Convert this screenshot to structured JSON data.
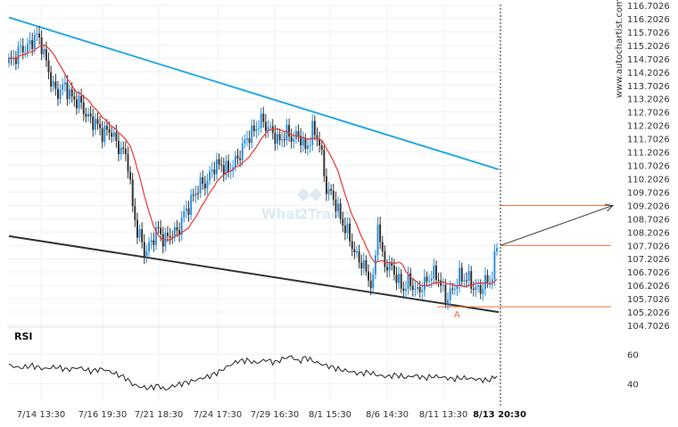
{
  "site_label": "www.autochartist.com",
  "watermark": {
    "text_left": "What",
    "text_mid": "2",
    "text_right": "Trade"
  },
  "colors": {
    "up": "#2f8fd8",
    "down": "#333333",
    "ma": "#e53935",
    "resistance": "#27a9e1",
    "support": "#333333",
    "level": "#f07030",
    "arrow": "#333333",
    "rsi": "#222222"
  },
  "chart_data": [
    {
      "type": "candlestick",
      "title": "",
      "xlabel": "",
      "ylabel": "",
      "x_ticks": [
        "7/14 13:30",
        "7/16 19:30",
        "7/21 18:30",
        "7/24 17:30",
        "7/29 16:30",
        "8/1 15:30",
        "8/6 14:30",
        "8/11 13:30",
        "8/13 20:30"
      ],
      "y_ticks": [
        "104.7026",
        "105.2026",
        "105.7026",
        "106.2026",
        "106.7026",
        "107.2026",
        "107.7026",
        "108.2026",
        "108.7026",
        "109.2026",
        "109.7026",
        "110.2026",
        "110.7026",
        "111.2026",
        "111.7026",
        "112.2026",
        "112.7026",
        "113.2026",
        "113.7026",
        "114.2026",
        "114.7026",
        "115.2026",
        "115.7026",
        "116.2026",
        "116.7026"
      ],
      "ylim": [
        104.7026,
        116.7026
      ],
      "n_bars": 210,
      "close_anchors": [
        [
          0,
          114.6
        ],
        [
          4,
          114.9
        ],
        [
          8,
          115.2
        ],
        [
          12,
          115.5
        ],
        [
          14,
          115.3
        ],
        [
          18,
          113.8
        ],
        [
          20,
          113.5
        ],
        [
          24,
          113.6
        ],
        [
          28,
          113.2
        ],
        [
          32,
          112.8
        ],
        [
          36,
          112.3
        ],
        [
          40,
          112.0
        ],
        [
          44,
          111.9
        ],
        [
          48,
          111.3
        ],
        [
          51,
          110.8
        ],
        [
          53,
          109.2
        ],
        [
          55,
          108.2
        ],
        [
          58,
          107.5
        ],
        [
          61,
          107.8
        ],
        [
          64,
          108.3
        ],
        [
          67,
          107.9
        ],
        [
          70,
          108.1
        ],
        [
          73,
          108.4
        ],
        [
          76,
          109.0
        ],
        [
          79,
          109.6
        ],
        [
          82,
          109.9
        ],
        [
          85,
          110.2
        ],
        [
          88,
          110.6
        ],
        [
          91,
          110.8
        ],
        [
          94,
          110.4
        ],
        [
          97,
          110.9
        ],
        [
          100,
          111.3
        ],
        [
          103,
          111.9
        ],
        [
          106,
          112.1
        ],
        [
          109,
          112.4
        ],
        [
          112,
          112.0
        ],
        [
          115,
          111.6
        ],
        [
          118,
          111.9
        ],
        [
          121,
          111.7
        ],
        [
          124,
          111.9
        ],
        [
          127,
          111.2
        ],
        [
          130,
          112.1
        ],
        [
          133,
          111.5
        ],
        [
          136,
          109.9
        ],
        [
          139,
          109.4
        ],
        [
          142,
          108.8
        ],
        [
          145,
          108.1
        ],
        [
          148,
          107.5
        ],
        [
          151,
          107.0
        ],
        [
          154,
          106.5
        ],
        [
          156,
          106.3
        ],
        [
          158,
          108.5
        ],
        [
          160,
          107.2
        ],
        [
          163,
          106.9
        ],
        [
          166,
          106.5
        ],
        [
          169,
          106.1
        ],
        [
          172,
          106.3
        ],
        [
          175,
          106.0
        ],
        [
          178,
          106.2
        ],
        [
          181,
          106.7
        ],
        [
          184,
          106.4
        ],
        [
          187,
          105.8
        ],
        [
          190,
          105.9
        ],
        [
          193,
          106.6
        ],
        [
          196,
          106.4
        ],
        [
          199,
          106.2
        ],
        [
          202,
          106.0
        ],
        [
          205,
          106.4
        ],
        [
          207,
          106.6
        ],
        [
          209,
          107.6
        ]
      ],
      "resistance_line": {
        "from": [
          0,
          116.25
        ],
        "to": [
          209,
          110.55
        ]
      },
      "support_line": {
        "from": [
          0,
          108.05
        ],
        "to": [
          209,
          105.2
        ]
      },
      "levels": {
        "target": 109.2,
        "current": 107.7,
        "pattern_low": 105.4
      },
      "forecast_arrow": {
        "from_price": 107.7,
        "to_price": 109.2
      },
      "point_label": "A"
    },
    {
      "type": "line",
      "panel_label": "RSI",
      "y_ticks": [
        "40",
        "60"
      ],
      "ylim": [
        32,
        68
      ],
      "anchors": [
        [
          0,
          52.5
        ],
        [
          5,
          50.8
        ],
        [
          10,
          52.3
        ],
        [
          15,
          50.1
        ],
        [
          20,
          51.5
        ],
        [
          25,
          49.6
        ],
        [
          30,
          51.0
        ],
        [
          35,
          48.5
        ],
        [
          40,
          50.1
        ],
        [
          45,
          47.2
        ],
        [
          50,
          44.1
        ],
        [
          53,
          39.7
        ],
        [
          56,
          38.1
        ],
        [
          60,
          37.2
        ],
        [
          64,
          39.0
        ],
        [
          67,
          36.0
        ],
        [
          70,
          38.5
        ],
        [
          74,
          40.2
        ],
        [
          78,
          41.7
        ],
        [
          82,
          43.6
        ],
        [
          86,
          45.3
        ],
        [
          90,
          48.2
        ],
        [
          94,
          52.1
        ],
        [
          98,
          55.3
        ],
        [
          102,
          55.9
        ],
        [
          106,
          54.1
        ],
        [
          110,
          56.3
        ],
        [
          114,
          54.4
        ],
        [
          118,
          57.4
        ],
        [
          121,
          58.5
        ],
        [
          124,
          55.0
        ],
        [
          127,
          57.9
        ],
        [
          130,
          55.6
        ],
        [
          134,
          53.2
        ],
        [
          138,
          51.4
        ],
        [
          142,
          49.6
        ],
        [
          146,
          48.4
        ],
        [
          150,
          46.9
        ],
        [
          154,
          47.9
        ],
        [
          158,
          45.8
        ],
        [
          162,
          44.9
        ],
        [
          166,
          46.1
        ],
        [
          170,
          44.3
        ],
        [
          174,
          45.7
        ],
        [
          178,
          43.9
        ],
        [
          182,
          45.1
        ],
        [
          186,
          44.5
        ],
        [
          190,
          43.3
        ],
        [
          194,
          44.1
        ],
        [
          198,
          43.6
        ],
        [
          202,
          42.8
        ],
        [
          205,
          42.3
        ],
        [
          207,
          43.5
        ],
        [
          209,
          45.6
        ]
      ]
    }
  ]
}
